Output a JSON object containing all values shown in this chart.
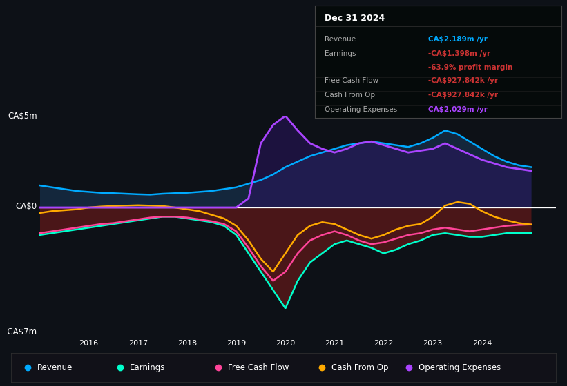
{
  "bg_color": "#0d1117",
  "plot_bg_color": "#0d1117",
  "ylim": [
    -7,
    5
  ],
  "xlim": [
    2015.0,
    2025.5
  ],
  "x_ticks": [
    2016,
    2017,
    2018,
    2019,
    2020,
    2021,
    2022,
    2023,
    2024
  ],
  "colors": {
    "revenue": "#00aaff",
    "earnings": "#00ffcc",
    "free_cash_flow": "#ff4499",
    "cash_from_op": "#ffaa00",
    "op_expenses": "#aa44ff"
  },
  "annotation_box": {
    "title": "Dec 31 2024",
    "rows": [
      {
        "label": "Revenue",
        "value": "CA$2.189m /yr",
        "value_color": "#00aaff"
      },
      {
        "label": "Earnings",
        "value": "-CA$1.398m /yr",
        "value_color": "#cc3333"
      },
      {
        "label": "",
        "value": "-63.9% profit margin",
        "value_color": "#cc3333"
      },
      {
        "label": "Free Cash Flow",
        "value": "-CA$927.842k /yr",
        "value_color": "#cc3333"
      },
      {
        "label": "Cash From Op",
        "value": "-CA$927.842k /yr",
        "value_color": "#cc3333"
      },
      {
        "label": "Operating Expenses",
        "value": "CA$2.029m /yr",
        "value_color": "#aa44ff"
      }
    ]
  },
  "legend": [
    {
      "label": "Revenue",
      "color": "#00aaff"
    },
    {
      "label": "Earnings",
      "color": "#00ffcc"
    },
    {
      "label": "Free Cash Flow",
      "color": "#ff4499"
    },
    {
      "label": "Cash From Op",
      "color": "#ffaa00"
    },
    {
      "label": "Operating Expenses",
      "color": "#aa44ff"
    }
  ],
  "t": [
    2015.0,
    2015.25,
    2015.5,
    2015.75,
    2016.0,
    2016.25,
    2016.5,
    2016.75,
    2017.0,
    2017.25,
    2017.5,
    2017.75,
    2018.0,
    2018.25,
    2018.5,
    2018.75,
    2019.0,
    2019.25,
    2019.5,
    2019.75,
    2020.0,
    2020.25,
    2020.5,
    2020.75,
    2021.0,
    2021.25,
    2021.5,
    2021.75,
    2022.0,
    2022.25,
    2022.5,
    2022.75,
    2023.0,
    2023.25,
    2023.5,
    2023.75,
    2024.0,
    2024.25,
    2024.5,
    2024.75,
    2025.0
  ],
  "revenue": [
    1.2,
    1.1,
    1.0,
    0.9,
    0.85,
    0.8,
    0.78,
    0.75,
    0.72,
    0.7,
    0.75,
    0.78,
    0.8,
    0.85,
    0.9,
    1.0,
    1.1,
    1.3,
    1.5,
    1.8,
    2.2,
    2.5,
    2.8,
    3.0,
    3.2,
    3.4,
    3.5,
    3.6,
    3.5,
    3.4,
    3.3,
    3.5,
    3.8,
    4.2,
    4.0,
    3.6,
    3.2,
    2.8,
    2.5,
    2.3,
    2.2
  ],
  "earnings": [
    -1.5,
    -1.4,
    -1.3,
    -1.2,
    -1.1,
    -1.0,
    -0.9,
    -0.8,
    -0.7,
    -0.6,
    -0.5,
    -0.5,
    -0.6,
    -0.7,
    -0.8,
    -1.0,
    -1.5,
    -2.5,
    -3.5,
    -4.5,
    -5.5,
    -4.0,
    -3.0,
    -2.5,
    -2.0,
    -1.8,
    -2.0,
    -2.2,
    -2.5,
    -2.3,
    -2.0,
    -1.8,
    -1.5,
    -1.4,
    -1.5,
    -1.6,
    -1.6,
    -1.5,
    -1.4,
    -1.4,
    -1.4
  ],
  "free_cash_flow": [
    -1.4,
    -1.3,
    -1.2,
    -1.1,
    -1.0,
    -0.9,
    -0.85,
    -0.75,
    -0.65,
    -0.55,
    -0.5,
    -0.5,
    -0.55,
    -0.65,
    -0.75,
    -0.9,
    -1.3,
    -2.2,
    -3.2,
    -4.0,
    -3.5,
    -2.5,
    -1.8,
    -1.5,
    -1.3,
    -1.5,
    -1.8,
    -2.0,
    -1.9,
    -1.7,
    -1.5,
    -1.4,
    -1.2,
    -1.1,
    -1.2,
    -1.3,
    -1.2,
    -1.1,
    -1.0,
    -0.95,
    -0.93
  ],
  "cash_from_op": [
    -0.3,
    -0.2,
    -0.15,
    -0.1,
    0.0,
    0.05,
    0.08,
    0.1,
    0.12,
    0.1,
    0.08,
    0.0,
    -0.1,
    -0.2,
    -0.4,
    -0.6,
    -1.0,
    -1.8,
    -2.8,
    -3.5,
    -2.5,
    -1.5,
    -1.0,
    -0.8,
    -0.9,
    -1.2,
    -1.5,
    -1.7,
    -1.5,
    -1.2,
    -1.0,
    -0.9,
    -0.5,
    0.1,
    0.3,
    0.2,
    -0.2,
    -0.5,
    -0.7,
    -0.85,
    -0.93
  ],
  "op_expenses": [
    0.0,
    0.0,
    0.0,
    0.0,
    0.0,
    0.0,
    0.0,
    0.0,
    0.0,
    0.0,
    0.0,
    0.0,
    0.0,
    0.0,
    0.0,
    0.0,
    0.0,
    0.5,
    3.5,
    4.5,
    5.0,
    4.2,
    3.5,
    3.2,
    3.0,
    3.2,
    3.5,
    3.6,
    3.4,
    3.2,
    3.0,
    3.1,
    3.2,
    3.5,
    3.2,
    2.9,
    2.6,
    2.4,
    2.2,
    2.1,
    2.0
  ]
}
